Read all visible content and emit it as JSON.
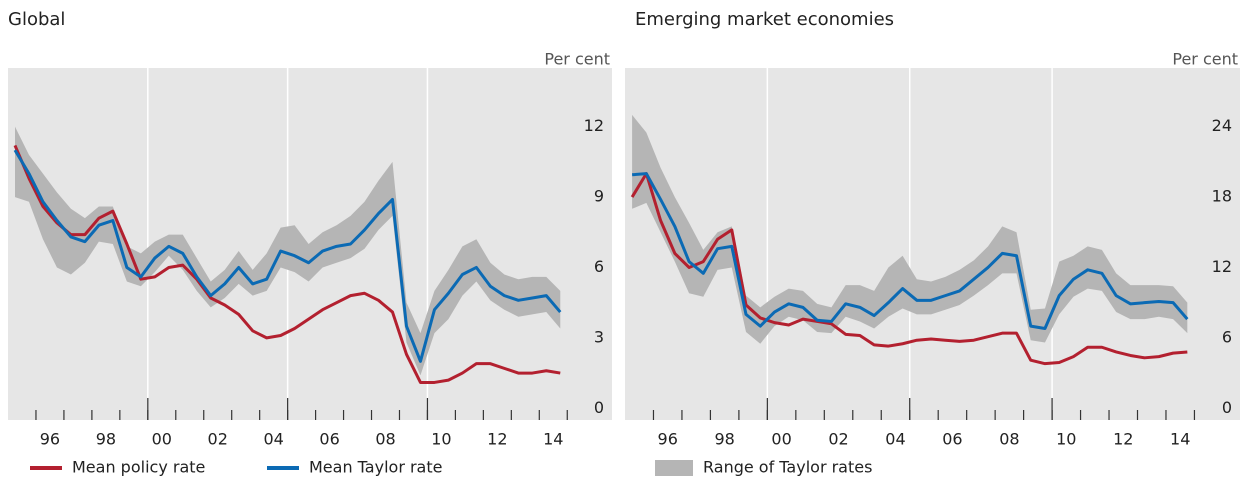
{
  "chart_data": [
    {
      "type": "line",
      "title": "Global",
      "unit_label": "Per cent",
      "x": [
        1995.25,
        1995.75,
        1996.25,
        1996.75,
        1997.25,
        1997.75,
        1998.25,
        1998.75,
        1999.25,
        1999.75,
        2000.25,
        2000.75,
        2001.25,
        2001.75,
        2002.25,
        2002.75,
        2003.25,
        2003.75,
        2004.25,
        2004.75,
        2005.25,
        2005.75,
        2006.25,
        2006.75,
        2007.25,
        2007.75,
        2008.25,
        2008.75,
        2009.25,
        2009.75,
        2010.25,
        2010.75,
        2011.25,
        2011.75,
        2012.25,
        2012.75,
        2013.25,
        2013.75,
        2014.25,
        2014.75
      ],
      "xlim": [
        1995.0,
        2016.6
      ],
      "xticks": [
        {
          "value": 1996.5,
          "label": "96"
        },
        {
          "value": 1998.5,
          "label": "98"
        },
        {
          "value": 2000.5,
          "label": "00"
        },
        {
          "value": 2002.5,
          "label": "02"
        },
        {
          "value": 2004.5,
          "label": "04"
        },
        {
          "value": 2006.5,
          "label": "06"
        },
        {
          "value": 2008.5,
          "label": "08"
        },
        {
          "value": 2010.5,
          "label": "10"
        },
        {
          "value": 2012.5,
          "label": "12"
        },
        {
          "value": 2014.5,
          "label": "14"
        }
      ],
      "xminorticks": [
        1996,
        1997,
        1998,
        1999,
        2000,
        2001,
        2002,
        2003,
        2004,
        2005,
        2006,
        2007,
        2008,
        2009,
        2010,
        2011,
        2012,
        2013,
        2014,
        2015
      ],
      "xgrid": [
        2000,
        2005,
        2010
      ],
      "ylim": [
        -0.5,
        14.5
      ],
      "yticks": [
        0,
        3,
        6,
        9,
        12
      ],
      "band": {
        "color": "#b5b5b5",
        "low": [
          9.0,
          8.8,
          7.2,
          6.0,
          5.7,
          6.2,
          7.1,
          7.0,
          5.4,
          5.2,
          5.8,
          6.5,
          5.9,
          5.0,
          4.3,
          4.7,
          5.3,
          4.8,
          5.0,
          6.0,
          5.8,
          5.4,
          6.0,
          6.2,
          6.4,
          6.8,
          7.6,
          8.2,
          2.8,
          1.4,
          3.2,
          3.8,
          4.8,
          5.4,
          4.6,
          4.2,
          3.9,
          4.0,
          4.1,
          3.4
        ],
        "high": [
          12.0,
          10.8,
          10.0,
          9.2,
          8.5,
          8.1,
          8.6,
          8.6,
          6.9,
          6.6,
          7.1,
          7.4,
          7.4,
          6.4,
          5.4,
          5.9,
          6.7,
          5.9,
          6.6,
          7.7,
          7.8,
          7.0,
          7.5,
          7.8,
          8.2,
          8.8,
          9.7,
          10.5,
          4.5,
          3.2,
          5.0,
          5.9,
          6.9,
          7.2,
          6.2,
          5.7,
          5.5,
          5.6,
          5.6,
          5.0
        ]
      },
      "series": [
        {
          "name": "Mean policy rate",
          "color": "#b3202f",
          "values": [
            11.2,
            9.8,
            8.6,
            7.9,
            7.4,
            7.4,
            8.1,
            8.4,
            7.0,
            5.5,
            5.6,
            6.0,
            6.1,
            5.5,
            4.7,
            4.4,
            4.0,
            3.3,
            3.0,
            3.1,
            3.4,
            3.8,
            4.2,
            4.5,
            4.8,
            4.9,
            4.6,
            4.1,
            2.3,
            1.1,
            1.1,
            1.2,
            1.5,
            1.9,
            1.9,
            1.7,
            1.5,
            1.5,
            1.6,
            1.5
          ]
        },
        {
          "name": "Mean Taylor rate",
          "color": "#0b6ab4",
          "values": [
            11.0,
            10.0,
            8.8,
            8.0,
            7.3,
            7.1,
            7.8,
            8.0,
            6.0,
            5.6,
            6.4,
            6.9,
            6.6,
            5.6,
            4.8,
            5.3,
            6.0,
            5.3,
            5.5,
            6.7,
            6.5,
            6.2,
            6.7,
            6.9,
            7.0,
            7.6,
            8.3,
            8.9,
            3.5,
            2.0,
            4.2,
            4.9,
            5.7,
            6.0,
            5.2,
            4.8,
            4.6,
            4.7,
            4.8,
            4.1
          ]
        }
      ]
    },
    {
      "type": "line",
      "title": "Emerging market economies",
      "unit_label": "Per cent",
      "x": [
        1995.25,
        1995.75,
        1996.25,
        1996.75,
        1997.25,
        1997.75,
        1998.25,
        1998.75,
        1999.25,
        1999.75,
        2000.25,
        2000.75,
        2001.25,
        2001.75,
        2002.25,
        2002.75,
        2003.25,
        2003.75,
        2004.25,
        2004.75,
        2005.25,
        2005.75,
        2006.25,
        2006.75,
        2007.25,
        2007.75,
        2008.25,
        2008.75,
        2009.25,
        2009.75,
        2010.25,
        2010.75,
        2011.25,
        2011.75,
        2012.25,
        2012.75,
        2013.25,
        2013.75,
        2014.25,
        2014.75
      ],
      "xlim": [
        1995.0,
        2016.6
      ],
      "xticks": [
        {
          "value": 1996.5,
          "label": "96"
        },
        {
          "value": 1998.5,
          "label": "98"
        },
        {
          "value": 2000.5,
          "label": "00"
        },
        {
          "value": 2002.5,
          "label": "02"
        },
        {
          "value": 2004.5,
          "label": "04"
        },
        {
          "value": 2006.5,
          "label": "06"
        },
        {
          "value": 2008.5,
          "label": "08"
        },
        {
          "value": 2010.5,
          "label": "10"
        },
        {
          "value": 2012.5,
          "label": "12"
        },
        {
          "value": 2014.5,
          "label": "14"
        }
      ],
      "xminorticks": [
        1996,
        1997,
        1998,
        1999,
        2000,
        2001,
        2002,
        2003,
        2004,
        2005,
        2006,
        2007,
        2008,
        2009,
        2010,
        2011,
        2012,
        2013,
        2014,
        2015
      ],
      "xgrid": [
        2000,
        2005,
        2010
      ],
      "ylim": [
        -1,
        29
      ],
      "yticks": [
        0,
        6,
        12,
        18,
        24
      ],
      "band": {
        "name": "Range of Taylor rates",
        "color": "#b5b5b5",
        "low": [
          17.0,
          17.5,
          15.0,
          12.5,
          9.8,
          9.5,
          11.8,
          12.0,
          6.5,
          5.5,
          7.0,
          7.8,
          7.5,
          6.5,
          6.4,
          7.8,
          7.4,
          6.8,
          7.8,
          8.5,
          8.0,
          8.0,
          8.4,
          8.8,
          9.6,
          10.5,
          11.5,
          11.5,
          5.8,
          5.6,
          8.0,
          9.5,
          10.2,
          10.0,
          8.2,
          7.6,
          7.6,
          7.8,
          7.6,
          6.4
        ],
        "high": [
          25.0,
          23.5,
          20.5,
          18.0,
          15.8,
          13.5,
          15.0,
          15.5,
          9.6,
          8.6,
          9.5,
          10.2,
          10.0,
          8.9,
          8.6,
          10.5,
          10.5,
          10.0,
          12.0,
          13.0,
          11.0,
          10.8,
          11.2,
          11.8,
          12.6,
          13.8,
          15.5,
          15.0,
          8.4,
          8.5,
          12.5,
          13.0,
          13.8,
          13.5,
          11.5,
          10.5,
          10.5,
          10.5,
          10.4,
          9.0
        ]
      },
      "series": [
        {
          "color": "#b3202f",
          "values": [
            18.0,
            20.0,
            16.0,
            13.2,
            12.0,
            12.5,
            14.4,
            15.2,
            8.8,
            7.7,
            7.3,
            7.1,
            7.6,
            7.4,
            7.2,
            6.3,
            6.2,
            5.4,
            5.3,
            5.5,
            5.8,
            5.9,
            5.8,
            5.7,
            5.8,
            6.1,
            6.4,
            6.4,
            4.1,
            3.8,
            3.9,
            4.4,
            5.2,
            5.2,
            4.8,
            4.5,
            4.3,
            4.4,
            4.7,
            4.8
          ]
        },
        {
          "color": "#0b6ab4",
          "values": [
            19.9,
            20.0,
            17.8,
            15.5,
            12.5,
            11.5,
            13.6,
            13.8,
            8.0,
            7.0,
            8.2,
            8.9,
            8.6,
            7.5,
            7.4,
            8.9,
            8.6,
            7.9,
            9.0,
            10.2,
            9.2,
            9.2,
            9.6,
            10.0,
            11.0,
            12.0,
            13.2,
            13.0,
            7.0,
            6.8,
            9.6,
            11.0,
            11.8,
            11.5,
            9.6,
            8.9,
            9.0,
            9.1,
            9.0,
            7.6
          ]
        }
      ]
    }
  ]
}
